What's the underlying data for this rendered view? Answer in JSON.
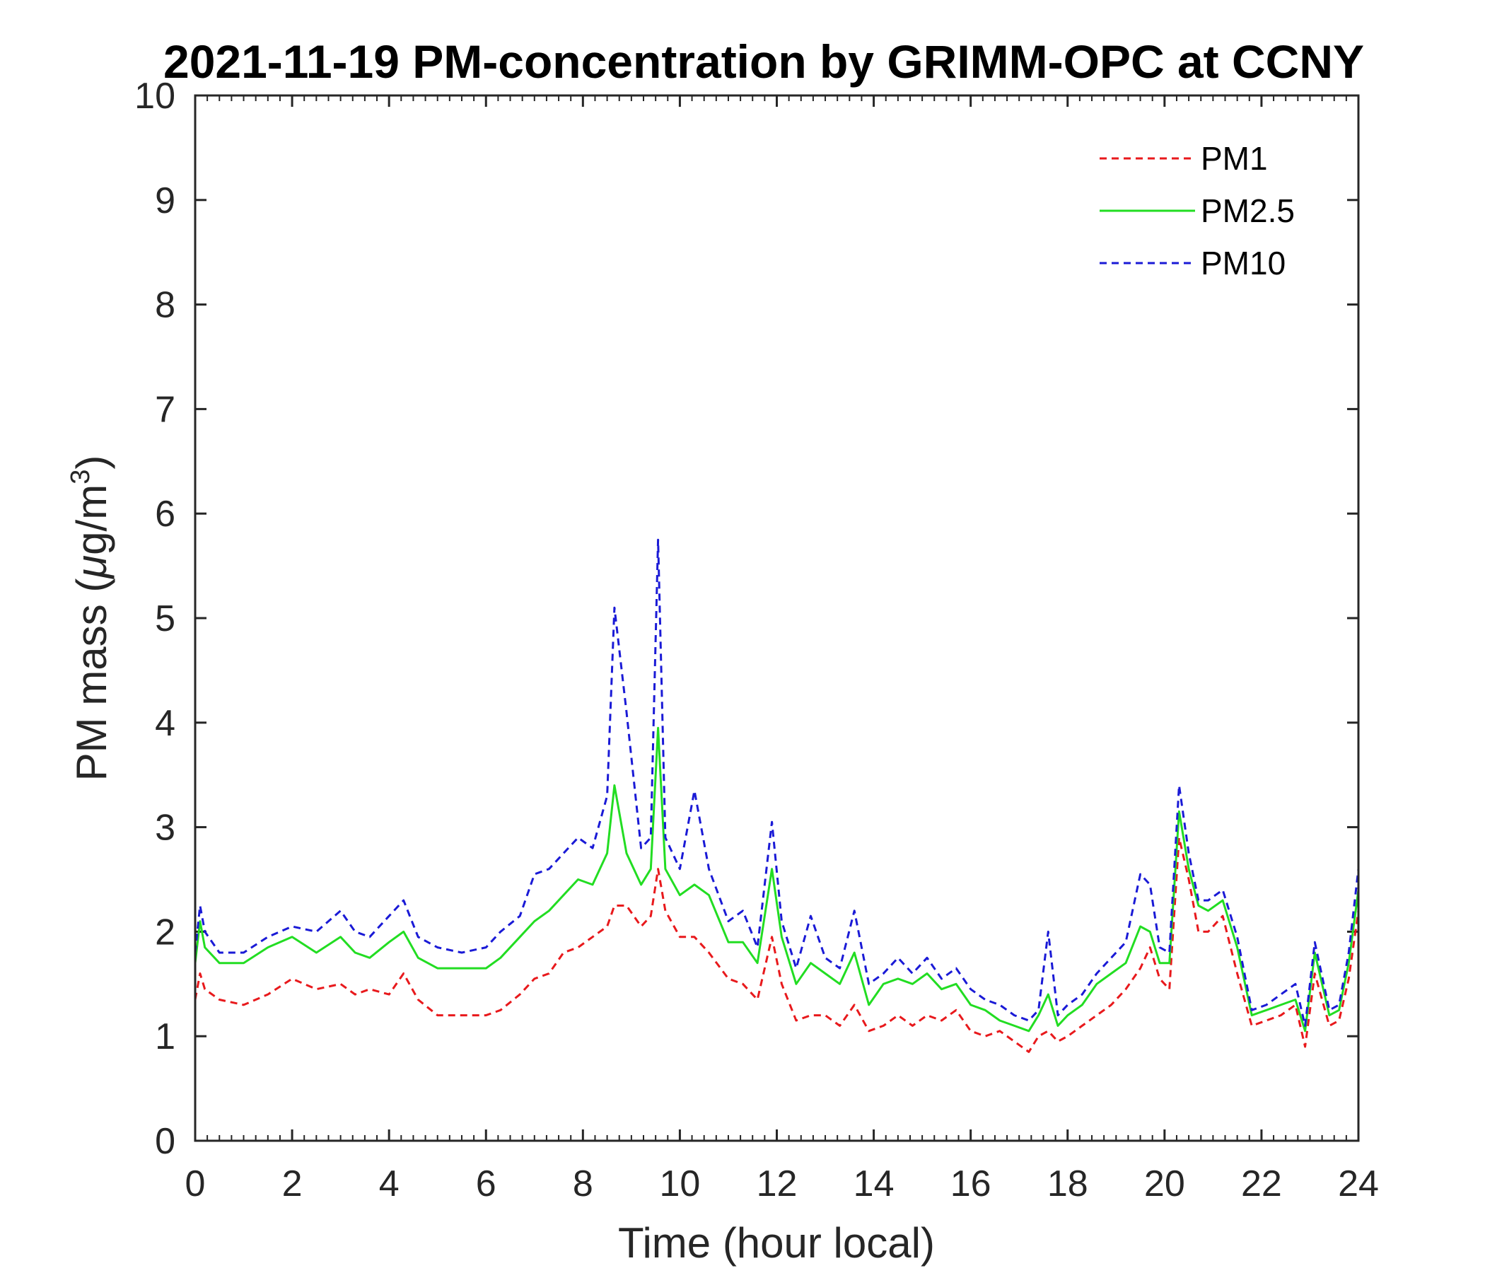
{
  "chart_data": {
    "type": "line",
    "title": "2021-11-19 PM-concentration by GRIMM-OPC at CCNY",
    "xlabel": "Time (hour local)",
    "ylabel_main": "PM mass (",
    "ylabel_mu": "μ",
    "ylabel_unit": "g/m",
    "ylabel_sup": "3",
    "ylabel_close": ")",
    "xlim": [
      0,
      24
    ],
    "ylim": [
      0,
      10
    ],
    "xticks": [
      0,
      2,
      4,
      6,
      8,
      10,
      12,
      14,
      16,
      18,
      20,
      22,
      24
    ],
    "yticks": [
      0,
      1,
      2,
      3,
      4,
      5,
      6,
      7,
      8,
      9,
      10
    ],
    "grid": false,
    "legend_position": "top-right",
    "x": [
      0,
      0.1,
      0.2,
      0.5,
      1,
      1.5,
      2,
      2.5,
      3,
      3.3,
      3.6,
      4,
      4.3,
      4.6,
      5,
      5.5,
      6,
      6.3,
      6.7,
      7,
      7.3,
      7.6,
      7.9,
      8.2,
      8.5,
      8.65,
      8.9,
      9.2,
      9.4,
      9.55,
      9.7,
      10,
      10.3,
      10.6,
      11,
      11.3,
      11.6,
      11.9,
      12.1,
      12.4,
      12.7,
      13,
      13.3,
      13.6,
      13.9,
      14.2,
      14.5,
      14.8,
      15.1,
      15.4,
      15.7,
      16,
      16.3,
      16.6,
      16.9,
      17.2,
      17.4,
      17.6,
      17.8,
      18,
      18.3,
      18.6,
      18.9,
      19.2,
      19.5,
      19.7,
      19.9,
      20.1,
      20.3,
      20.5,
      20.7,
      20.9,
      21.2,
      21.5,
      21.8,
      22.1,
      22.4,
      22.7,
      22.9,
      23.1,
      23.4,
      23.6,
      23.8,
      24
    ],
    "series": [
      {
        "name": "PM1",
        "color": "#e8191c",
        "style": "dashed",
        "values": [
          1.35,
          1.6,
          1.45,
          1.35,
          1.3,
          1.4,
          1.55,
          1.45,
          1.5,
          1.4,
          1.45,
          1.4,
          1.6,
          1.35,
          1.2,
          1.2,
          1.2,
          1.25,
          1.4,
          1.55,
          1.6,
          1.8,
          1.85,
          1.95,
          2.05,
          2.25,
          2.25,
          2.05,
          2.15,
          2.6,
          2.2,
          1.95,
          1.95,
          1.8,
          1.55,
          1.5,
          1.35,
          1.95,
          1.5,
          1.15,
          1.2,
          1.2,
          1.1,
          1.3,
          1.05,
          1.1,
          1.2,
          1.1,
          1.2,
          1.15,
          1.25,
          1.05,
          1.0,
          1.05,
          0.95,
          0.85,
          1.0,
          1.05,
          0.95,
          1.0,
          1.1,
          1.2,
          1.3,
          1.45,
          1.65,
          1.85,
          1.55,
          1.45,
          2.9,
          2.5,
          2.0,
          2.0,
          2.15,
          1.6,
          1.1,
          1.15,
          1.2,
          1.3,
          0.9,
          1.6,
          1.1,
          1.15,
          1.55,
          2.2
        ]
      },
      {
        "name": "PM2.5",
        "color": "#22dd22",
        "style": "solid",
        "values": [
          1.7,
          2.1,
          1.85,
          1.7,
          1.7,
          1.85,
          1.95,
          1.8,
          1.95,
          1.8,
          1.75,
          1.9,
          2.0,
          1.75,
          1.65,
          1.65,
          1.65,
          1.75,
          1.95,
          2.1,
          2.2,
          2.35,
          2.5,
          2.45,
          2.75,
          3.4,
          2.75,
          2.45,
          2.6,
          3.95,
          2.6,
          2.35,
          2.45,
          2.35,
          1.9,
          1.9,
          1.7,
          2.6,
          1.95,
          1.5,
          1.7,
          1.6,
          1.5,
          1.8,
          1.3,
          1.5,
          1.55,
          1.5,
          1.6,
          1.45,
          1.5,
          1.3,
          1.25,
          1.15,
          1.1,
          1.05,
          1.2,
          1.4,
          1.1,
          1.2,
          1.3,
          1.5,
          1.6,
          1.7,
          2.05,
          2.0,
          1.7,
          1.7,
          3.15,
          2.6,
          2.25,
          2.2,
          2.3,
          1.85,
          1.2,
          1.25,
          1.3,
          1.35,
          1.05,
          1.8,
          1.2,
          1.25,
          1.7,
          2.4
        ]
      },
      {
        "name": "PM10",
        "color": "#1a1ad6",
        "style": "dashed",
        "values": [
          1.8,
          2.25,
          2.0,
          1.8,
          1.8,
          1.95,
          2.05,
          2.0,
          2.2,
          2.0,
          1.95,
          2.15,
          2.3,
          1.95,
          1.85,
          1.8,
          1.85,
          2.0,
          2.15,
          2.55,
          2.6,
          2.75,
          2.9,
          2.8,
          3.3,
          5.1,
          4.1,
          2.8,
          2.9,
          5.75,
          2.9,
          2.6,
          3.35,
          2.6,
          2.1,
          2.2,
          1.85,
          3.05,
          2.1,
          1.65,
          2.15,
          1.75,
          1.65,
          2.2,
          1.5,
          1.6,
          1.75,
          1.6,
          1.75,
          1.55,
          1.65,
          1.45,
          1.35,
          1.3,
          1.2,
          1.15,
          1.25,
          2.0,
          1.2,
          1.3,
          1.4,
          1.6,
          1.75,
          1.9,
          2.55,
          2.45,
          1.85,
          1.8,
          3.4,
          2.75,
          2.3,
          2.3,
          2.4,
          1.95,
          1.25,
          1.3,
          1.4,
          1.5,
          1.1,
          1.9,
          1.25,
          1.3,
          1.8,
          2.6
        ]
      }
    ]
  }
}
